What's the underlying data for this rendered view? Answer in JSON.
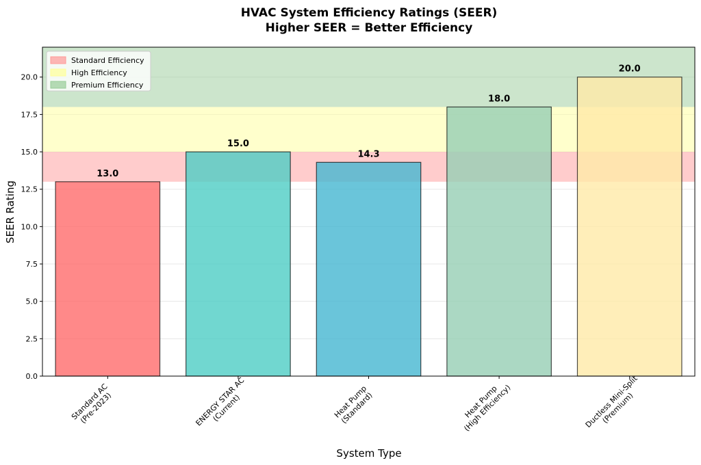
{
  "chart_data": {
    "type": "bar",
    "title": "HVAC System Efficiency Ratings (SEER)",
    "subtitle": "Higher SEER = Better Efficiency",
    "xlabel": "System Type",
    "ylabel": "SEER Rating",
    "ylim": [
      0,
      22
    ],
    "yticks": [
      0.0,
      2.5,
      5.0,
      7.5,
      10.0,
      12.5,
      15.0,
      17.5,
      20.0
    ],
    "ytick_labels": [
      "0.0",
      "2.5",
      "5.0",
      "7.5",
      "10.0",
      "12.5",
      "15.0",
      "17.5",
      "20.0"
    ],
    "grid": true,
    "legend_position": "top-left",
    "categories": [
      [
        "Standard AC",
        "(Pre-2023)"
      ],
      [
        "ENERGY STAR AC",
        "(Current)"
      ],
      [
        "Heat Pump",
        "(Standard)"
      ],
      [
        "Heat Pump",
        "(High Efficiency)"
      ],
      [
        "Ductless Mini-Split",
        "(Premium)"
      ]
    ],
    "values": [
      13.0,
      15.0,
      14.3,
      18.0,
      20.0
    ],
    "value_labels": [
      "13.0",
      "15.0",
      "14.3",
      "18.0",
      "20.0"
    ],
    "bar_colors": [
      "#ff6b6b",
      "#4ecdc4",
      "#45b7d1",
      "#96ceb4",
      "#ffeaa7"
    ],
    "bands": [
      {
        "name": "Standard Efficiency",
        "from": 13,
        "to": 15,
        "color": "#ff9999"
      },
      {
        "name": "High Efficiency",
        "from": 15,
        "to": 18,
        "color": "#ffff99"
      },
      {
        "name": "Premium Efficiency",
        "from": 18,
        "to": 22,
        "color": "#99cc99"
      }
    ]
  }
}
